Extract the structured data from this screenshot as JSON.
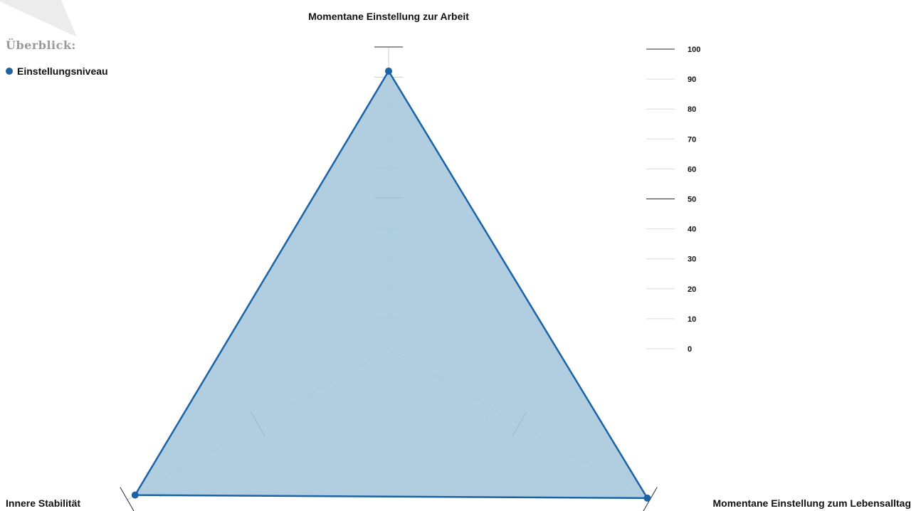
{
  "overview_label": "Überblick:",
  "legend": [
    {
      "label": "Einstellungsniveau",
      "color": "#1f63a3"
    }
  ],
  "colors": {
    "series_stroke": "#1a63a6",
    "series_fill": "#a9c9de",
    "axis_grey": "#c8ccd1",
    "major_tick": "#2b2b2b",
    "wedge": "#ececec"
  },
  "chart_data": {
    "type": "radar",
    "axes": [
      "Momentane Einstellung zur Arbeit",
      "Momentane Einstellung zum Lebensalltag",
      "Innere Stabilität"
    ],
    "scale_ticks": [
      "100",
      "90",
      "80",
      "70",
      "60",
      "50",
      "40",
      "30",
      "20",
      "10",
      "0"
    ],
    "range": [
      0,
      100
    ],
    "major_ticks": [
      50,
      100
    ],
    "series": [
      {
        "name": "Einstellungsniveau",
        "values": [
          92,
          99,
          97
        ]
      }
    ]
  }
}
